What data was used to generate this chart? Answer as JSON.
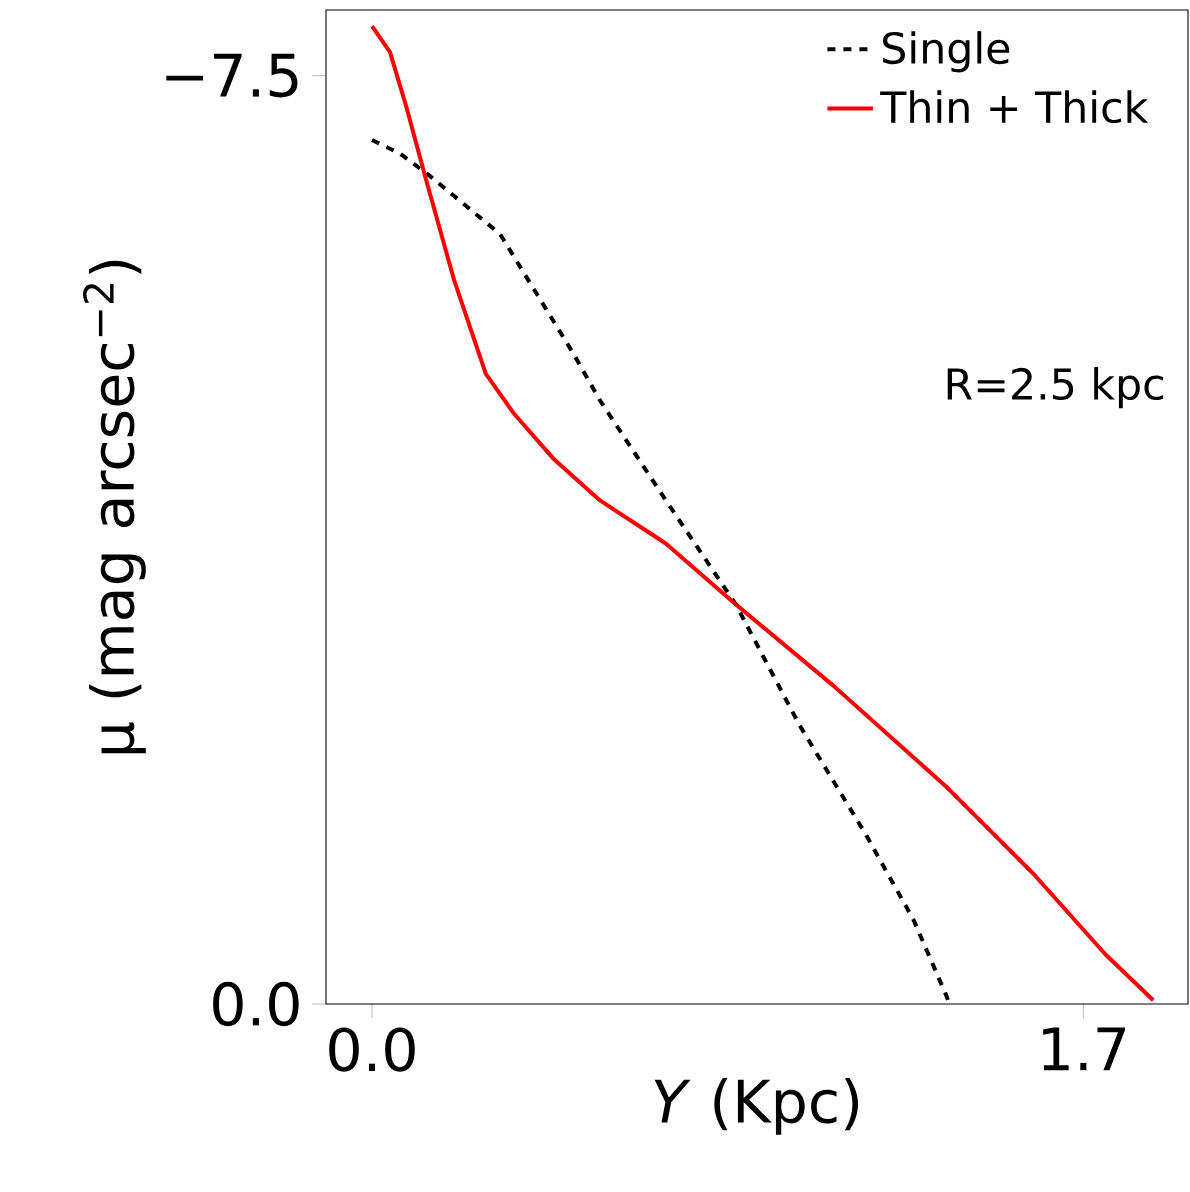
{
  "chart_data": {
    "type": "line",
    "xlabel": "*Y* (Kpc)",
    "ylabel": "μ (mag arcsec$^{−2}$)",
    "annotations": [
      "R=2.5 kpc"
    ],
    "xlim": [
      -0.11,
      1.95
    ],
    "ylim": [
      0,
      -8.03
    ],
    "xticks": [
      {
        "value": 0,
        "label": "0.0"
      },
      {
        "value": 1.7,
        "label": "1.7"
      }
    ],
    "yticks": [
      {
        "value": -7.5,
        "label": "−7.5"
      },
      {
        "value": 0,
        "label": "0.0"
      }
    ],
    "legend": "top right",
    "grid": false,
    "series": [
      {
        "name": "Single",
        "color": "#000000",
        "line_style": "dashed",
        "x": [
          0,
          0.067,
          0.138,
          0.306,
          0.482,
          0.544,
          0.702,
          0.869,
          1.022,
          1.18,
          1.294,
          1.371,
          1.38
        ],
        "values": [
          -6.98,
          -6.87,
          -6.69,
          -6.22,
          -5.25,
          -4.88,
          -4.07,
          -3.23,
          -2.25,
          -1.37,
          -0.68,
          -0.08,
          0
        ]
      },
      {
        "name": "Thin + Thick",
        "color": "#ff0000",
        "line_style": "solid",
        "x": [
          0,
          0.043,
          0.081,
          0.129,
          0.196,
          0.272,
          0.339,
          0.435,
          0.544,
          0.702,
          0.869,
          1.103,
          1.371,
          1.581,
          1.753,
          1.867
        ],
        "values": [
          -7.9,
          -7.69,
          -7.26,
          -6.66,
          -5.85,
          -5.09,
          -4.77,
          -4.4,
          -4.07,
          -3.72,
          -3.23,
          -2.57,
          -1.76,
          -1.05,
          -0.4,
          -0.03
        ]
      }
    ]
  }
}
